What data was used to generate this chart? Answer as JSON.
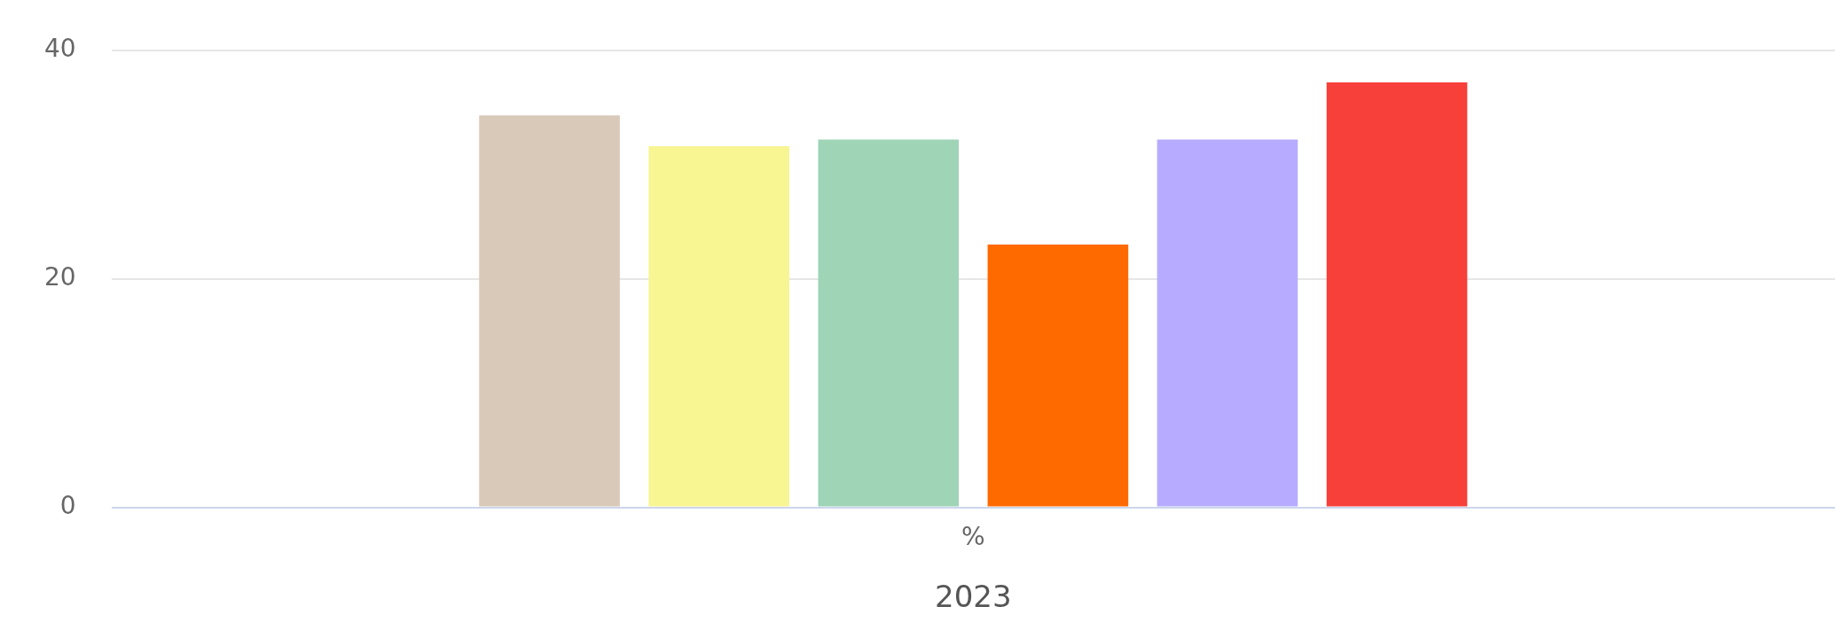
{
  "chart_data": {
    "type": "bar",
    "xlabel": "2023",
    "categories": [
      "%"
    ],
    "series": [
      {
        "color": "#d9c9b8",
        "values": [
          34.3
        ]
      },
      {
        "color": "#f8f593",
        "values": [
          31.6
        ]
      },
      {
        "color": "#9fd4b6",
        "values": [
          32.2
        ]
      },
      {
        "color": "#ff6a00",
        "values": [
          23.0
        ]
      },
      {
        "color": "#b6abff",
        "values": [
          32.2
        ]
      },
      {
        "color": "#f7403a",
        "values": [
          37.2
        ]
      }
    ],
    "ylim": [
      0,
      40
    ],
    "yticks": [
      0,
      20,
      40
    ],
    "grid": "y",
    "legend": false
  }
}
